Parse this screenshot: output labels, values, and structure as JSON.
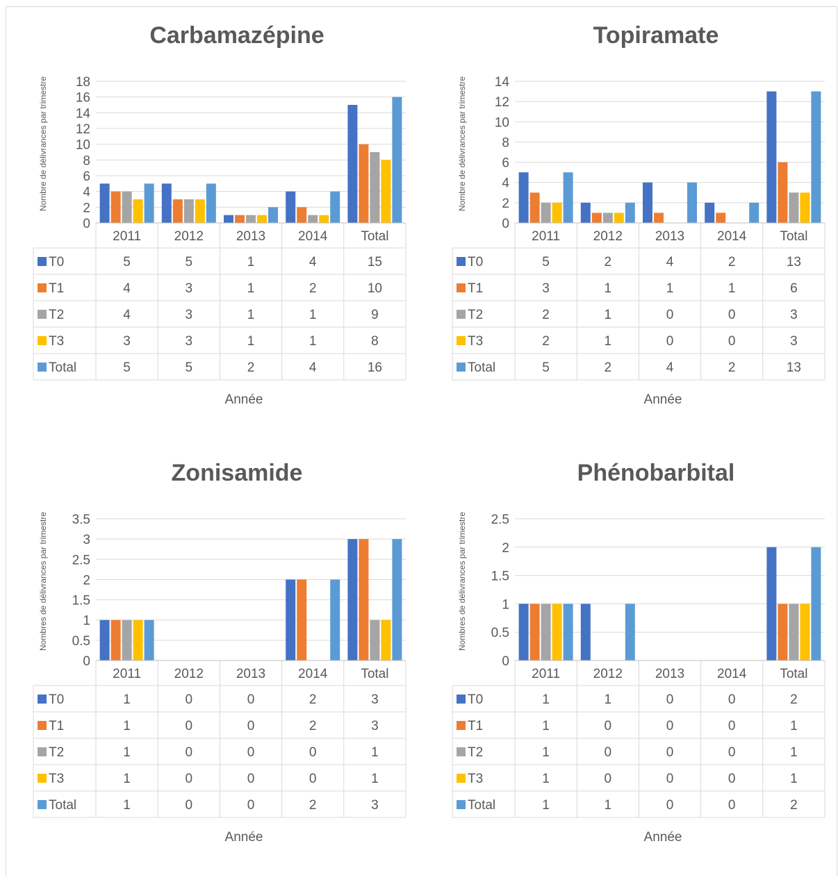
{
  "series_colors": {
    "T0": "#4472c4",
    "T1": "#ed7d31",
    "T2": "#a5a5a5",
    "T3": "#ffc000",
    "Total": "#5b9bd5"
  },
  "chart_data": [
    {
      "type": "bar",
      "title": "Carbamazépine",
      "ylabel": "Nombre de délivrances par trimestre",
      "xlabel": "Année",
      "ylim": [
        0,
        18
      ],
      "ytick_step": 2,
      "yticks": [
        "0",
        "2",
        "4",
        "6",
        "8",
        "10",
        "12",
        "14",
        "16",
        "18"
      ],
      "categories": [
        "2011",
        "2012",
        "2013",
        "2014",
        "Total"
      ],
      "series": [
        {
          "name": "T0",
          "values": [
            5,
            5,
            1,
            4,
            15
          ]
        },
        {
          "name": "T1",
          "values": [
            4,
            3,
            1,
            2,
            10
          ]
        },
        {
          "name": "T2",
          "values": [
            4,
            3,
            1,
            1,
            9
          ]
        },
        {
          "name": "T3",
          "values": [
            3,
            3,
            1,
            1,
            8
          ]
        },
        {
          "name": "Total",
          "values": [
            5,
            5,
            2,
            4,
            16
          ]
        }
      ],
      "grid": true,
      "legend": "data-table"
    },
    {
      "type": "bar",
      "title": "Topiramate",
      "ylabel": "Nombre de délivrances par trimestre",
      "xlabel": "Année",
      "ylim": [
        0,
        14
      ],
      "ytick_step": 2,
      "yticks": [
        "0",
        "2",
        "4",
        "6",
        "8",
        "10",
        "12",
        "14"
      ],
      "categories": [
        "2011",
        "2012",
        "2013",
        "2014",
        "Total"
      ],
      "series": [
        {
          "name": "T0",
          "values": [
            5,
            2,
            4,
            2,
            13
          ]
        },
        {
          "name": "T1",
          "values": [
            3,
            1,
            1,
            1,
            6
          ]
        },
        {
          "name": "T2",
          "values": [
            2,
            1,
            0,
            0,
            3
          ]
        },
        {
          "name": "T3",
          "values": [
            2,
            1,
            0,
            0,
            3
          ]
        },
        {
          "name": "Total",
          "values": [
            5,
            2,
            4,
            2,
            13
          ]
        }
      ],
      "grid": true,
      "legend": "data-table"
    },
    {
      "type": "bar",
      "title": "Zonisamide",
      "ylabel": "Nombres de délivrances par trimestre",
      "xlabel": "Année",
      "ylim": [
        0,
        3.5
      ],
      "ytick_step": 0.5,
      "yticks": [
        "0",
        "0.5",
        "1",
        "1.5",
        "2",
        "2.5",
        "3",
        "3.5"
      ],
      "categories": [
        "2011",
        "2012",
        "2013",
        "2014",
        "Total"
      ],
      "series": [
        {
          "name": "T0",
          "values": [
            1,
            0,
            0,
            2,
            3
          ]
        },
        {
          "name": "T1",
          "values": [
            1,
            0,
            0,
            2,
            3
          ]
        },
        {
          "name": "T2",
          "values": [
            1,
            0,
            0,
            0,
            1
          ]
        },
        {
          "name": "T3",
          "values": [
            1,
            0,
            0,
            0,
            1
          ]
        },
        {
          "name": "Total",
          "values": [
            1,
            0,
            0,
            2,
            3
          ]
        }
      ],
      "grid": true,
      "legend": "data-table"
    },
    {
      "type": "bar",
      "title": "Phénobarbital",
      "ylabel": "Nombres de délivrances par trimestre",
      "xlabel": "Année",
      "ylim": [
        0,
        2.5
      ],
      "ytick_step": 0.5,
      "yticks": [
        "0",
        "0.5",
        "1",
        "1.5",
        "2",
        "2.5"
      ],
      "categories": [
        "2011",
        "2012",
        "2013",
        "2014",
        "Total"
      ],
      "series": [
        {
          "name": "T0",
          "values": [
            1,
            1,
            0,
            0,
            2
          ]
        },
        {
          "name": "T1",
          "values": [
            1,
            0,
            0,
            0,
            1
          ]
        },
        {
          "name": "T2",
          "values": [
            1,
            0,
            0,
            0,
            1
          ]
        },
        {
          "name": "T3",
          "values": [
            1,
            0,
            0,
            0,
            1
          ]
        },
        {
          "name": "Total",
          "values": [
            1,
            1,
            0,
            0,
            2
          ]
        }
      ],
      "grid": true,
      "legend": "data-table"
    }
  ]
}
